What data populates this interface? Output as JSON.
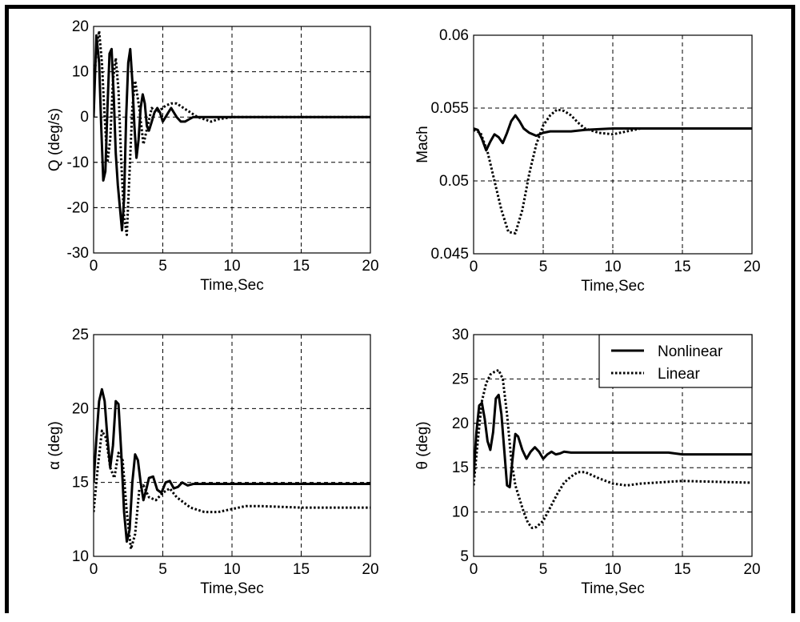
{
  "chart_data": [
    {
      "type": "line",
      "xlabel": "Time,Sec",
      "ylabel": "Q (deg/s)",
      "xlim": [
        0,
        20
      ],
      "ylim": [
        -30,
        20
      ],
      "xticks": [
        0,
        5,
        10,
        15,
        20
      ],
      "yticks": [
        -30,
        -20,
        -10,
        0,
        10,
        20
      ],
      "xtick_labels": [
        "0",
        "5",
        "10",
        "15",
        "20"
      ],
      "ytick_labels": [
        "-30",
        "-20",
        "-10",
        "0",
        "10",
        "20"
      ],
      "grid": true,
      "series": [
        {
          "key": "nonlinear",
          "style": "solid",
          "x": [
            0,
            0.2,
            0.4,
            0.55,
            0.7,
            0.85,
            1.0,
            1.15,
            1.3,
            1.45,
            1.6,
            1.75,
            1.9,
            2.05,
            2.2,
            2.35,
            2.5,
            2.65,
            2.8,
            2.95,
            3.1,
            3.25,
            3.4,
            3.55,
            3.7,
            3.85,
            4.0,
            4.2,
            4.4,
            4.6,
            4.8,
            5.0,
            5.2,
            5.4,
            5.6,
            5.8,
            6.0,
            6.3,
            6.6,
            6.9,
            7.2,
            7.5,
            8,
            9,
            10,
            12,
            15,
            20
          ],
          "y": [
            0,
            18,
            12,
            -2,
            -14,
            -12,
            2,
            14,
            15,
            5,
            -8,
            -15,
            -20,
            -25,
            -18,
            0,
            12,
            15,
            8,
            -2,
            -9,
            -5,
            2,
            5,
            3,
            -2,
            -3,
            -1,
            1,
            2,
            1,
            -1,
            0,
            1,
            2,
            1,
            0,
            -1,
            -1,
            -0.5,
            0,
            0,
            0,
            0,
            0,
            0,
            0,
            0
          ]
        },
        {
          "key": "linear",
          "style": "dotted",
          "x": [
            0,
            0.2,
            0.4,
            0.6,
            0.8,
            1.0,
            1.2,
            1.4,
            1.6,
            1.8,
            2.0,
            2.2,
            2.4,
            2.6,
            2.8,
            3.0,
            3.3,
            3.6,
            3.9,
            4.2,
            4.5,
            4.8,
            5.2,
            5.6,
            6.0,
            6.5,
            7.0,
            7.5,
            8.0,
            8.5,
            9,
            10,
            12,
            15,
            20
          ],
          "y": [
            5,
            15,
            19,
            12,
            0,
            -10,
            -5,
            8,
            13,
            6,
            -10,
            -22,
            -26,
            -12,
            2,
            8,
            2,
            -6,
            -2,
            2,
            1,
            1.5,
            2.5,
            3,
            3,
            2,
            1,
            0,
            -0.5,
            -1,
            -0.5,
            0,
            0,
            0,
            0
          ]
        }
      ]
    },
    {
      "type": "line",
      "xlabel": "Time,Sec",
      "ylabel": "Mach",
      "xlim": [
        0,
        20
      ],
      "ylim": [
        0.045,
        0.06
      ],
      "xticks": [
        0,
        5,
        10,
        15,
        20
      ],
      "yticks": [
        0.045,
        0.05,
        0.055,
        0.06
      ],
      "xtick_labels": [
        "0",
        "5",
        "10",
        "15",
        "20"
      ],
      "ytick_labels": [
        "0.045",
        "0.05",
        "0.055",
        "0.06"
      ],
      "grid": true,
      "series": [
        {
          "key": "nonlinear",
          "style": "solid",
          "x": [
            0,
            0.3,
            0.6,
            0.9,
            1.2,
            1.5,
            1.8,
            2.1,
            2.4,
            2.7,
            3.0,
            3.3,
            3.6,
            4.0,
            4.5,
            5.0,
            5.5,
            6.0,
            7,
            8,
            10,
            12,
            15,
            20
          ],
          "y": [
            0.0536,
            0.0535,
            0.0529,
            0.0521,
            0.0527,
            0.0532,
            0.053,
            0.0526,
            0.0533,
            0.0541,
            0.0545,
            0.0541,
            0.0536,
            0.0533,
            0.0531,
            0.0533,
            0.0534,
            0.0534,
            0.0534,
            0.0535,
            0.0536,
            0.0536,
            0.0536,
            0.0536
          ]
        },
        {
          "key": "linear",
          "style": "dotted",
          "x": [
            0,
            0.5,
            1.0,
            1.5,
            2.0,
            2.5,
            3.0,
            3.5,
            4.0,
            4.5,
            5.0,
            5.5,
            6.0,
            6.5,
            7.0,
            7.5,
            8.0,
            9,
            10,
            11,
            12,
            15,
            20
          ],
          "y": [
            0.0535,
            0.0533,
            0.052,
            0.05,
            0.048,
            0.0465,
            0.0464,
            0.048,
            0.0505,
            0.0525,
            0.0538,
            0.0545,
            0.0549,
            0.0548,
            0.0545,
            0.054,
            0.0536,
            0.0533,
            0.0532,
            0.0534,
            0.0536,
            0.0536,
            0.0536
          ]
        }
      ]
    },
    {
      "type": "line",
      "xlabel": "Time,Sec",
      "ylabel": "α (deg)",
      "xlim": [
        0,
        20
      ],
      "ylim": [
        10,
        25
      ],
      "xticks": [
        0,
        5,
        10,
        15,
        20
      ],
      "yticks": [
        10,
        15,
        20,
        25
      ],
      "xtick_labels": [
        "0",
        "5",
        "10",
        "15",
        "20"
      ],
      "ytick_labels": [
        "10",
        "15",
        "20",
        "25"
      ],
      "grid": true,
      "series": [
        {
          "key": "nonlinear",
          "style": "solid",
          "x": [
            0,
            0.2,
            0.4,
            0.6,
            0.8,
            1.0,
            1.2,
            1.4,
            1.6,
            1.8,
            2.0,
            2.2,
            2.4,
            2.6,
            2.8,
            3.0,
            3.2,
            3.4,
            3.6,
            3.8,
            4.0,
            4.3,
            4.6,
            4.9,
            5.2,
            5.5,
            5.8,
            6.1,
            6.4,
            6.8,
            7.2,
            7.6,
            8,
            10,
            15,
            20
          ],
          "y": [
            15,
            18,
            20.5,
            21.3,
            20.5,
            18,
            16,
            17.5,
            20.5,
            20.3,
            17,
            13,
            11,
            11.8,
            15,
            16.9,
            16.5,
            15,
            13.8,
            14.5,
            15.3,
            15.4,
            14.5,
            14.3,
            15,
            15.1,
            14.6,
            14.7,
            15,
            14.8,
            14.9,
            14.9,
            14.9,
            14.9,
            14.9,
            14.9
          ]
        },
        {
          "key": "linear",
          "style": "dotted",
          "x": [
            0,
            0.3,
            0.6,
            0.9,
            1.2,
            1.5,
            1.8,
            2.1,
            2.4,
            2.7,
            3.0,
            3.3,
            3.6,
            4.0,
            4.5,
            5.0,
            5.5,
            6,
            7,
            8,
            9,
            10,
            11,
            12,
            15,
            20
          ],
          "y": [
            13,
            16,
            18.5,
            18,
            16,
            15.3,
            17,
            16.5,
            13,
            10.5,
            11.5,
            14.5,
            14.8,
            14,
            13.8,
            14.3,
            14.6,
            14,
            13.3,
            13,
            13,
            13.2,
            13.4,
            13.4,
            13.3,
            13.3
          ]
        }
      ]
    },
    {
      "type": "line",
      "xlabel": "Time,Sec",
      "ylabel": "θ (deg)",
      "xlim": [
        0,
        20
      ],
      "ylim": [
        5,
        30
      ],
      "xticks": [
        0,
        5,
        10,
        15,
        20
      ],
      "yticks": [
        5,
        10,
        15,
        20,
        25,
        30
      ],
      "xtick_labels": [
        "0",
        "5",
        "10",
        "15",
        "20"
      ],
      "ytick_labels": [
        "5",
        "10",
        "15",
        "20",
        "25",
        "30"
      ],
      "grid": true,
      "legend": {
        "position": "top-right",
        "entries": [
          {
            "key": "nonlinear",
            "label": "Nonlinear",
            "style": "solid"
          },
          {
            "key": "linear",
            "label": "Linear",
            "style": "dotted"
          }
        ]
      },
      "series": [
        {
          "key": "nonlinear",
          "style": "solid",
          "x": [
            0,
            0.2,
            0.4,
            0.6,
            0.8,
            1.0,
            1.2,
            1.4,
            1.6,
            1.8,
            2.0,
            2.2,
            2.4,
            2.6,
            2.8,
            3.0,
            3.2,
            3.5,
            3.8,
            4.1,
            4.4,
            4.7,
            5.0,
            5.3,
            5.6,
            5.9,
            6.2,
            6.5,
            7.0,
            7.5,
            8,
            10,
            14,
            15,
            20
          ],
          "y": [
            14,
            19,
            22,
            22.3,
            20.5,
            18,
            17,
            19,
            22.8,
            23.2,
            21,
            17,
            13,
            12.8,
            16,
            18.8,
            18.5,
            17,
            16,
            16.8,
            17.3,
            16.8,
            16,
            16.5,
            16.8,
            16.5,
            16.6,
            16.8,
            16.7,
            16.7,
            16.7,
            16.7,
            16.7,
            16.5,
            16.5
          ]
        },
        {
          "key": "linear",
          "style": "dotted",
          "x": [
            0,
            0.3,
            0.6,
            0.9,
            1.2,
            1.5,
            1.8,
            2.1,
            2.4,
            2.7,
            3.0,
            3.3,
            3.6,
            3.9,
            4.2,
            4.5,
            5.0,
            5.5,
            6.0,
            6.5,
            7.0,
            7.5,
            8,
            9,
            10,
            11,
            12,
            15,
            20
          ],
          "y": [
            13,
            18,
            22.5,
            24.5,
            25.5,
            25.8,
            26,
            25,
            21,
            16,
            13,
            11.5,
            10,
            8.8,
            8.2,
            8.3,
            9,
            10.5,
            12,
            13.3,
            14,
            14.5,
            14.5,
            13.8,
            13.2,
            13,
            13.2,
            13.5,
            13.3
          ]
        }
      ]
    }
  ]
}
